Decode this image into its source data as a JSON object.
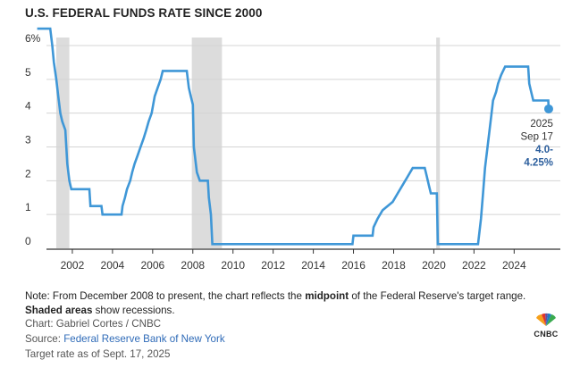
{
  "title": "U.S. FEDERAL FUNDS RATE SINCE 2000",
  "note": {
    "prefix": "Note: From December 2008 to present, the chart reflects the ",
    "bold1": "midpoint",
    "middle": " of the Federal Reserve's target range. ",
    "bold2": "Shaded areas",
    "suffix": " show recessions."
  },
  "chart_credit": "Chart: Gabriel Cortes / CNBC",
  "source_label": "Source: ",
  "source_link": "Federal Reserve Bank of New York",
  "target_note": "Target rate as of Sept. 17, 2025",
  "logo_text": "CNBC",
  "colors": {
    "line": "#3f97d7",
    "recession": "#dcdcdc",
    "grid": "#d4d4d4",
    "axis": "#333333",
    "callout_bold": "#2a5d9c"
  },
  "chart_data": {
    "type": "line",
    "title": "U.S. FEDERAL FUNDS RATE SINCE 2000",
    "xlabel": "",
    "ylabel": "",
    "xlim": [
      2000.0,
      2026.3
    ],
    "ylim": [
      0,
      6.5
    ],
    "y_ticks": [
      0,
      1,
      2,
      3,
      4,
      5,
      6
    ],
    "y_tick_labels": [
      "0",
      "1",
      "2",
      "3",
      "4",
      "5",
      "6%"
    ],
    "x_ticks": [
      2002,
      2004,
      2006,
      2008,
      2010,
      2012,
      2014,
      2016,
      2018,
      2020,
      2022,
      2024
    ],
    "x_tick_labels": [
      "2002",
      "2004",
      "2006",
      "2008",
      "2010",
      "2012",
      "2014",
      "2016",
      "2018",
      "2020",
      "2022",
      "2024"
    ],
    "grid": true,
    "recessions": [
      [
        2001.2,
        2001.85
      ],
      [
        2007.95,
        2009.45
      ],
      [
        2020.12,
        2020.3
      ]
    ],
    "series": [
      {
        "name": "Federal funds target rate",
        "points": [
          [
            2000.25,
            6.5
          ],
          [
            2000.9,
            6.5
          ],
          [
            2001.0,
            6.0
          ],
          [
            2001.08,
            5.5
          ],
          [
            2001.2,
            5.0
          ],
          [
            2001.3,
            4.5
          ],
          [
            2001.4,
            4.0
          ],
          [
            2001.5,
            3.75
          ],
          [
            2001.65,
            3.5
          ],
          [
            2001.7,
            3.0
          ],
          [
            2001.75,
            2.5
          ],
          [
            2001.85,
            2.0
          ],
          [
            2001.95,
            1.75
          ],
          [
            2002.85,
            1.75
          ],
          [
            2002.9,
            1.25
          ],
          [
            2003.45,
            1.25
          ],
          [
            2003.5,
            1.0
          ],
          [
            2004.45,
            1.0
          ],
          [
            2004.5,
            1.25
          ],
          [
            2004.62,
            1.5
          ],
          [
            2004.72,
            1.75
          ],
          [
            2004.88,
            2.0
          ],
          [
            2004.98,
            2.25
          ],
          [
            2005.1,
            2.5
          ],
          [
            2005.25,
            2.75
          ],
          [
            2005.4,
            3.0
          ],
          [
            2005.55,
            3.25
          ],
          [
            2005.68,
            3.5
          ],
          [
            2005.8,
            3.75
          ],
          [
            2005.95,
            4.0
          ],
          [
            2006.1,
            4.5
          ],
          [
            2006.25,
            4.75
          ],
          [
            2006.4,
            5.0
          ],
          [
            2006.5,
            5.25
          ],
          [
            2007.7,
            5.25
          ],
          [
            2007.8,
            4.75
          ],
          [
            2007.9,
            4.5
          ],
          [
            2008.0,
            4.25
          ],
          [
            2008.05,
            3.0
          ],
          [
            2008.2,
            2.25
          ],
          [
            2008.35,
            2.0
          ],
          [
            2008.75,
            2.0
          ],
          [
            2008.8,
            1.5
          ],
          [
            2008.9,
            1.0
          ],
          [
            2008.97,
            0.125
          ],
          [
            2015.95,
            0.125
          ],
          [
            2016.0,
            0.375
          ],
          [
            2016.95,
            0.375
          ],
          [
            2017.0,
            0.625
          ],
          [
            2017.2,
            0.875
          ],
          [
            2017.45,
            1.125
          ],
          [
            2017.95,
            1.375
          ],
          [
            2018.2,
            1.625
          ],
          [
            2018.45,
            1.875
          ],
          [
            2018.7,
            2.125
          ],
          [
            2018.95,
            2.375
          ],
          [
            2019.55,
            2.375
          ],
          [
            2019.65,
            2.125
          ],
          [
            2019.75,
            1.875
          ],
          [
            2019.85,
            1.625
          ],
          [
            2020.15,
            1.625
          ],
          [
            2020.2,
            0.125
          ],
          [
            2022.2,
            0.125
          ],
          [
            2022.25,
            0.375
          ],
          [
            2022.35,
            0.875
          ],
          [
            2022.45,
            1.625
          ],
          [
            2022.55,
            2.375
          ],
          [
            2022.7,
            3.125
          ],
          [
            2022.85,
            3.875
          ],
          [
            2022.95,
            4.375
          ],
          [
            2023.1,
            4.625
          ],
          [
            2023.2,
            4.875
          ],
          [
            2023.35,
            5.125
          ],
          [
            2023.55,
            5.375
          ],
          [
            2024.7,
            5.375
          ],
          [
            2024.75,
            4.875
          ],
          [
            2024.85,
            4.625
          ],
          [
            2024.95,
            4.375
          ],
          [
            2025.7,
            4.375
          ],
          [
            2025.72,
            4.125
          ]
        ]
      }
    ],
    "callout": {
      "x": 2025.72,
      "y": 4.125,
      "year": "2025",
      "date": "Sep 17",
      "value_line1": "4.0-",
      "value_line2": "4.25%"
    }
  }
}
